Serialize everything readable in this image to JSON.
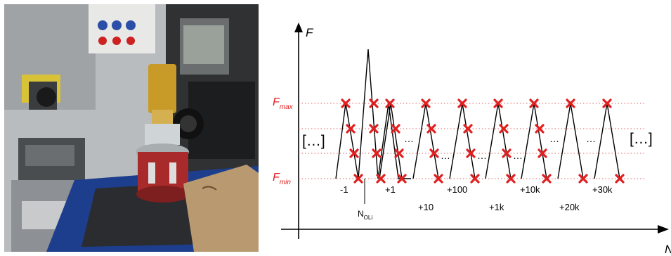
{
  "photo": {
    "description_icons": [
      "test-rig-photo"
    ]
  },
  "diagram": {
    "y_axis_label": "F",
    "x_axis_label": "N",
    "f_max_label": "F",
    "f_max_sub": "max",
    "f_min_label": "F",
    "f_min_sub": "min",
    "ellipsis_bracket": "[…]",
    "dots": "…",
    "n_label": "N",
    "n_sub": "OLi",
    "cycle_labels_top": [
      "-1",
      "+1",
      "+100",
      "+10k",
      "+30k"
    ],
    "cycle_labels_bottom": [
      "+10",
      "+1k",
      "+20k"
    ],
    "colors": {
      "marker": "#e02020",
      "grid": "#e06060",
      "line": "#000000"
    }
  }
}
